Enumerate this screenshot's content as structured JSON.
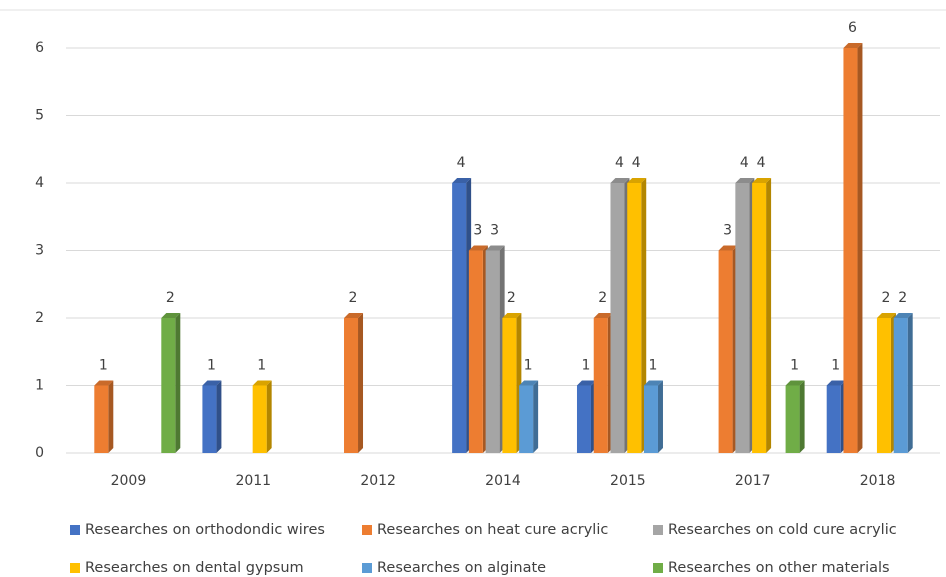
{
  "chart_data": {
    "type": "bar",
    "categories": [
      "2009",
      "2011",
      "2012",
      "2014",
      "2015",
      "2017",
      "2018"
    ],
    "series": [
      {
        "name": "Researches on orthodondic wires",
        "color": "#4472c4",
        "values": [
          null,
          1,
          null,
          4,
          1,
          null,
          1
        ]
      },
      {
        "name": "Researches on heat cure acrylic",
        "color": "#ed7d31",
        "values": [
          1,
          null,
          2,
          3,
          2,
          3,
          6
        ]
      },
      {
        "name": "Researches on cold cure acrylic",
        "color": "#a5a5a5",
        "values": [
          null,
          null,
          null,
          3,
          4,
          4,
          null
        ]
      },
      {
        "name": "Researches on dental gypsum",
        "color": "#ffc000",
        "values": [
          null,
          1,
          null,
          2,
          4,
          4,
          2
        ]
      },
      {
        "name": "Researches on alginate",
        "color": "#5b9bd5",
        "values": [
          null,
          null,
          null,
          1,
          1,
          null,
          2
        ]
      },
      {
        "name": "Researches on other materials",
        "color": "#70ad47",
        "values": [
          2,
          null,
          null,
          null,
          null,
          1,
          null
        ]
      }
    ],
    "ylim": [
      0,
      6
    ],
    "yticks": [
      0,
      1,
      2,
      3,
      4,
      5,
      6
    ],
    "grid": true,
    "legend": "bottom"
  }
}
